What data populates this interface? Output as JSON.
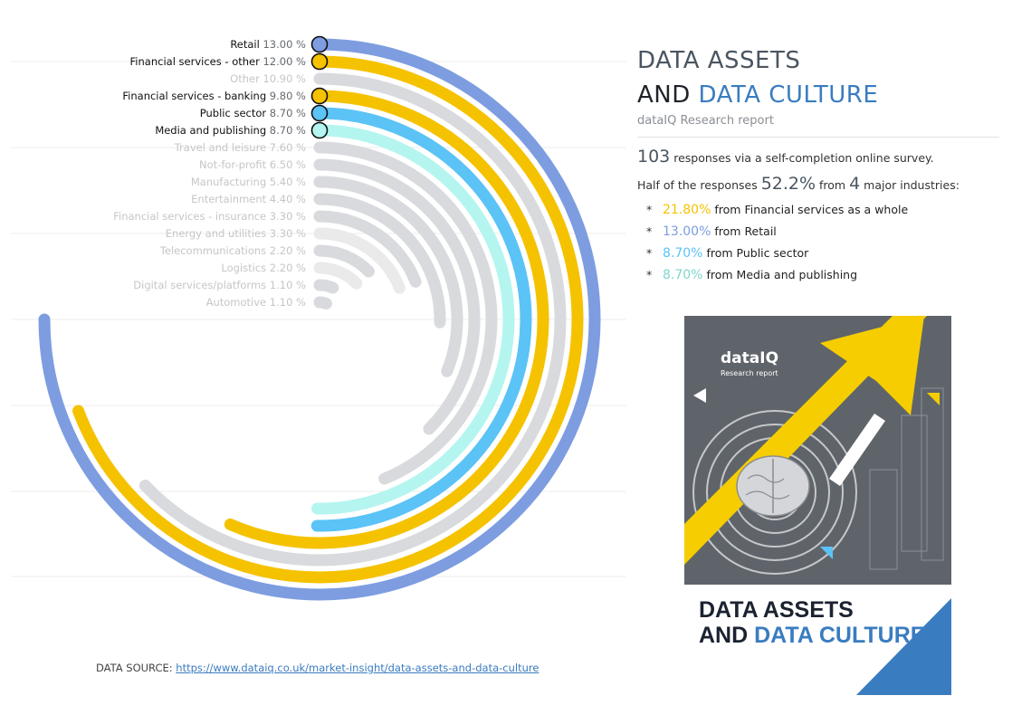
{
  "chart_data": {
    "type": "radial_bar",
    "unit": "%",
    "max_value": 13.0,
    "categories": [
      {
        "name": "Retail",
        "value": 13.0,
        "display": "13.00 %",
        "color": "#7d9de0",
        "highlighted": true
      },
      {
        "name": "Financial services - other",
        "value": 12.0,
        "display": "12.00 %",
        "color": "#f5c200",
        "highlighted": true
      },
      {
        "name": "Other",
        "value": 10.9,
        "display": "10.90 %",
        "color": "#d9dadd",
        "highlighted": false
      },
      {
        "name": "Financial services - banking",
        "value": 9.8,
        "display": "9.80 %",
        "color": "#f5c200",
        "highlighted": true
      },
      {
        "name": "Public sector",
        "value": 8.7,
        "display": "8.70 %",
        "color": "#5bc3f5",
        "highlighted": true
      },
      {
        "name": "Media and publishing",
        "value": 8.7,
        "display": "8.70 %",
        "color": "#b4f5f0",
        "highlighted": true
      },
      {
        "name": "Travel and leisure",
        "value": 7.6,
        "display": "7.60 %",
        "color": "#d9dadd",
        "highlighted": false
      },
      {
        "name": "Not-for-profit",
        "value": 6.5,
        "display": "6.50 %",
        "color": "#d9dadd",
        "highlighted": false
      },
      {
        "name": "Manufacturing",
        "value": 5.4,
        "display": "5.40 %",
        "color": "#d9dadd",
        "highlighted": false
      },
      {
        "name": "Entertainment",
        "value": 4.4,
        "display": "4.40 %",
        "color": "#d9dadd",
        "highlighted": false
      },
      {
        "name": "Financial services - insurance",
        "value": 3.3,
        "display": "3.30 %",
        "color": "#d9dadd",
        "highlighted": false
      },
      {
        "name": "Energy and utilities",
        "value": 3.3,
        "display": "3.30 %",
        "color": "#eaeaea",
        "highlighted": false
      },
      {
        "name": "Telecommunications",
        "value": 2.2,
        "display": "2.20 %",
        "color": "#d9dadd",
        "highlighted": false
      },
      {
        "name": "Logistics",
        "value": 2.2,
        "display": "2.20 %",
        "color": "#eaeaea",
        "highlighted": false
      },
      {
        "name": "Digital services/platforms",
        "value": 1.1,
        "display": "1.10 %",
        "color": "#d9dadd",
        "highlighted": false
      },
      {
        "name": "Automotive",
        "value": 1.1,
        "display": "1.10 %",
        "color": "#d9dadd",
        "highlighted": false
      }
    ],
    "label_color_highlight": "#111111",
    "label_color_muted": "#c4c6c9",
    "gridlines": true
  },
  "report": {
    "title_line1": "DATA ASSETS",
    "title_line2_prefix": "AND ",
    "title_line2_accent": "DATA CULTURE",
    "subtitle": "dataIQ Research report",
    "stat1_number": "103",
    "stat1_text": " responses via a self-completion online survey.",
    "stat2_prefix": "Half of the responses ",
    "stat2_percent": "52.2%",
    "stat2_mid": " from ",
    "stat2_count": "4",
    "stat2_suffix": " major industries:",
    "bullet_symbol": "*",
    "from_word": " from ",
    "industries": [
      {
        "pct": "21.80%",
        "name": "Financial services",
        "suffix": " as a whole",
        "color": "#f5c200"
      },
      {
        "pct": "13.00%",
        "name": "Retail",
        "suffix": "",
        "color": "#7d9de0"
      },
      {
        "pct": "8.70%",
        "name": "Public sector",
        "suffix": "",
        "color": "#5bc3f5"
      },
      {
        "pct": "8.70%",
        "name": "Media and publishing",
        "suffix": "",
        "color": "#7fd6cc"
      }
    ]
  },
  "source": {
    "label": "DATA SOURCE: ",
    "url": "https://www.dataiq.co.uk/market-insight/data-assets-and-data-culture"
  },
  "cover": {
    "logo": "dataIQ",
    "logo_sub": "Research report",
    "title_line1": "DATA ASSETS",
    "title_line2_prefix": "AND ",
    "title_line2_accent": "DATA CULTURE",
    "colors": {
      "background": "#5f646b",
      "yellow": "#f5cd00",
      "blue": "#3a7cc0",
      "navy": "#1b2230"
    }
  }
}
